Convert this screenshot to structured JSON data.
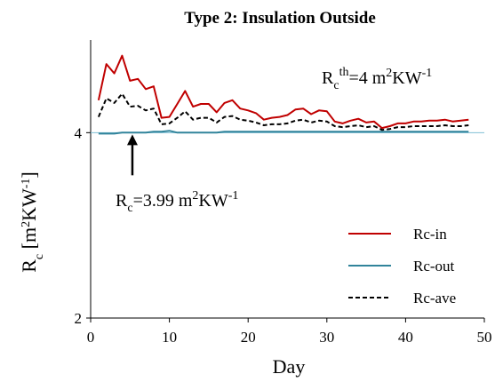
{
  "chart_data": {
    "type": "line",
    "title": "Type 2: Insulation Outside",
    "xlabel": "Day",
    "ylabel": {
      "base": "R",
      "sub": "c",
      "unit_open": " [m",
      "unit_sup1": "2",
      "unit_mid": "KW",
      "unit_sup2": "-1",
      "unit_close": "]"
    },
    "xlim": [
      0,
      50
    ],
    "ylim": [
      2,
      5
    ],
    "xticks": [
      0,
      10,
      20,
      30,
      40,
      50
    ],
    "yticks": [
      2,
      4
    ],
    "legend_position": "lower-right",
    "x": [
      1,
      2,
      3,
      4,
      5,
      6,
      7,
      8,
      9,
      10,
      11,
      12,
      13,
      14,
      15,
      16,
      17,
      18,
      19,
      20,
      21,
      22,
      23,
      24,
      25,
      26,
      27,
      28,
      29,
      30,
      31,
      32,
      33,
      34,
      35,
      36,
      37,
      38,
      39,
      40,
      41,
      42,
      43,
      44,
      45,
      46,
      47,
      48
    ],
    "series": [
      {
        "name": "Rc-in",
        "color": "#c00000",
        "dash": "solid",
        "values": [
          4.35,
          4.74,
          4.64,
          4.83,
          4.56,
          4.58,
          4.47,
          4.5,
          4.16,
          4.17,
          4.31,
          4.45,
          4.28,
          4.31,
          4.31,
          4.22,
          4.32,
          4.35,
          4.26,
          4.24,
          4.21,
          4.14,
          4.16,
          4.17,
          4.19,
          4.25,
          4.26,
          4.2,
          4.24,
          4.23,
          4.12,
          4.1,
          4.13,
          4.15,
          4.11,
          4.12,
          4.05,
          4.07,
          4.1,
          4.1,
          4.12,
          4.12,
          4.13,
          4.13,
          4.14,
          4.12,
          4.13,
          4.14
        ]
      },
      {
        "name": "Rc-out",
        "color": "#31849b",
        "dash": "solid",
        "values": [
          3.99,
          3.99,
          3.99,
          4.0,
          4.0,
          4.0,
          4.0,
          4.01,
          4.01,
          4.02,
          4.0,
          4.0,
          4.0,
          4.0,
          4.0,
          4.0,
          4.01,
          4.01,
          4.01,
          4.01,
          4.01,
          4.01,
          4.01,
          4.01,
          4.01,
          4.01,
          4.01,
          4.01,
          4.01,
          4.01,
          4.01,
          4.01,
          4.01,
          4.01,
          4.01,
          4.01,
          4.01,
          4.01,
          4.01,
          4.01,
          4.01,
          4.01,
          4.01,
          4.01,
          4.01,
          4.01,
          4.01,
          4.01
        ]
      },
      {
        "name": "Rc-ave",
        "color": "#000000",
        "dash": "dashed",
        "values": [
          4.17,
          4.37,
          4.32,
          4.42,
          4.28,
          4.29,
          4.24,
          4.26,
          4.09,
          4.1,
          4.16,
          4.23,
          4.14,
          4.16,
          4.16,
          4.11,
          4.17,
          4.18,
          4.14,
          4.13,
          4.11,
          4.08,
          4.09,
          4.09,
          4.1,
          4.13,
          4.14,
          4.11,
          4.13,
          4.12,
          4.07,
          4.06,
          4.07,
          4.08,
          4.06,
          4.07,
          4.03,
          4.04,
          4.06,
          4.06,
          4.07,
          4.07,
          4.07,
          4.07,
          4.08,
          4.07,
          4.07,
          4.08
        ]
      }
    ],
    "reference_line": {
      "y": 4,
      "color": "#7fbfd4"
    },
    "annotations": {
      "threshold": {
        "base": "R",
        "sub": "c",
        "sup": "th",
        "value": "=4 m",
        "sup2": "2",
        "mid": "KW",
        "sup3": "-1"
      },
      "measured": {
        "base": "R",
        "sub": "c",
        "value": "=3.99 m",
        "sup2": "2",
        "mid": "KW",
        "sup3": "-1",
        "arrow_x": 5.3,
        "arrow_from_y": 3.54,
        "arrow_to_y": 3.98
      }
    }
  }
}
